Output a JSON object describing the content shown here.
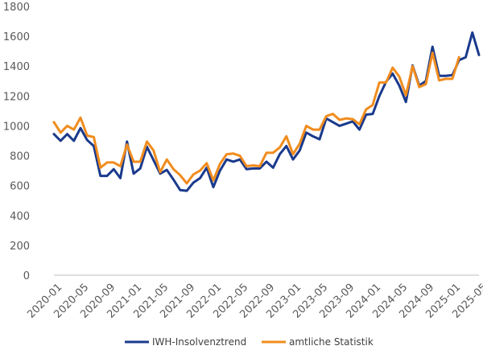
{
  "chart_data": {
    "type": "line",
    "title": "",
    "xlabel": "",
    "ylabel": "",
    "ylim": [
      0,
      1800
    ],
    "yticks": [
      0,
      200,
      400,
      600,
      800,
      1000,
      1200,
      1400,
      1600,
      1800
    ],
    "grid": false,
    "legend_position": "bottom",
    "x": [
      "2020-01",
      "2020-02",
      "2020-03",
      "2020-04",
      "2020-05",
      "2020-06",
      "2020-07",
      "2020-08",
      "2020-09",
      "2020-10",
      "2020-11",
      "2020-12",
      "2021-01",
      "2021-02",
      "2021-03",
      "2021-04",
      "2021-05",
      "2021-06",
      "2021-07",
      "2021-08",
      "2021-09",
      "2021-10",
      "2021-11",
      "2021-12",
      "2022-01",
      "2022-02",
      "2022-03",
      "2022-04",
      "2022-05",
      "2022-06",
      "2022-07",
      "2022-08",
      "2022-09",
      "2022-10",
      "2022-11",
      "2022-12",
      "2023-01",
      "2023-02",
      "2023-03",
      "2023-04",
      "2023-05",
      "2023-06",
      "2023-07",
      "2023-08",
      "2023-09",
      "2023-10",
      "2023-11",
      "2023-12",
      "2024-01",
      "2024-02",
      "2024-03",
      "2024-04",
      "2024-05",
      "2024-06",
      "2024-07",
      "2024-08",
      "2024-09",
      "2024-10",
      "2024-11",
      "2024-12",
      "2025-01",
      "2025-02",
      "2025-03",
      "2025-04",
      "2025-05"
    ],
    "x_tick_labels": [
      "2020-01",
      "2020-05",
      "2020-09",
      "2021-01",
      "2021-05",
      "2021-09",
      "2022-01",
      "2022-05",
      "2022-09",
      "2023-01",
      "2023-05",
      "2023-09",
      "2024-01",
      "2024-05",
      "2024-09",
      "2025-01",
      "2025-05"
    ],
    "series": [
      {
        "name": "IWH-Insolvenztrend",
        "color": "#1a3a8c",
        "values": [
          945,
          900,
          945,
          900,
          985,
          905,
          865,
          665,
          665,
          710,
          650,
          895,
          680,
          715,
          860,
          770,
          680,
          705,
          640,
          570,
          565,
          620,
          650,
          720,
          590,
          700,
          775,
          760,
          775,
          710,
          715,
          715,
          760,
          720,
          810,
          865,
          775,
          835,
          955,
          930,
          910,
          1050,
          1025,
          1000,
          1015,
          1030,
          975,
          1075,
          1080,
          1200,
          1295,
          1350,
          1270,
          1160,
          1405,
          1270,
          1300,
          1530,
          1335,
          1335,
          1340,
          1440,
          1460,
          1625,
          1475
        ]
      },
      {
        "name": "amtliche Statistik",
        "color": "#f08c1e",
        "values": [
          1025,
          955,
          1000,
          975,
          1055,
          935,
          925,
          720,
          755,
          755,
          730,
          875,
          760,
          760,
          895,
          835,
          690,
          775,
          710,
          670,
          615,
          675,
          700,
          750,
          635,
          745,
          810,
          815,
          800,
          730,
          735,
          730,
          820,
          820,
          855,
          930,
          810,
          880,
          1000,
          975,
          975,
          1065,
          1080,
          1040,
          1050,
          1045,
          1010,
          1110,
          1140,
          1290,
          1290,
          1390,
          1330,
          1205,
          1400,
          1260,
          1280,
          1490,
          1305,
          1315,
          1315,
          1460,
          null,
          null,
          null
        ]
      }
    ]
  }
}
